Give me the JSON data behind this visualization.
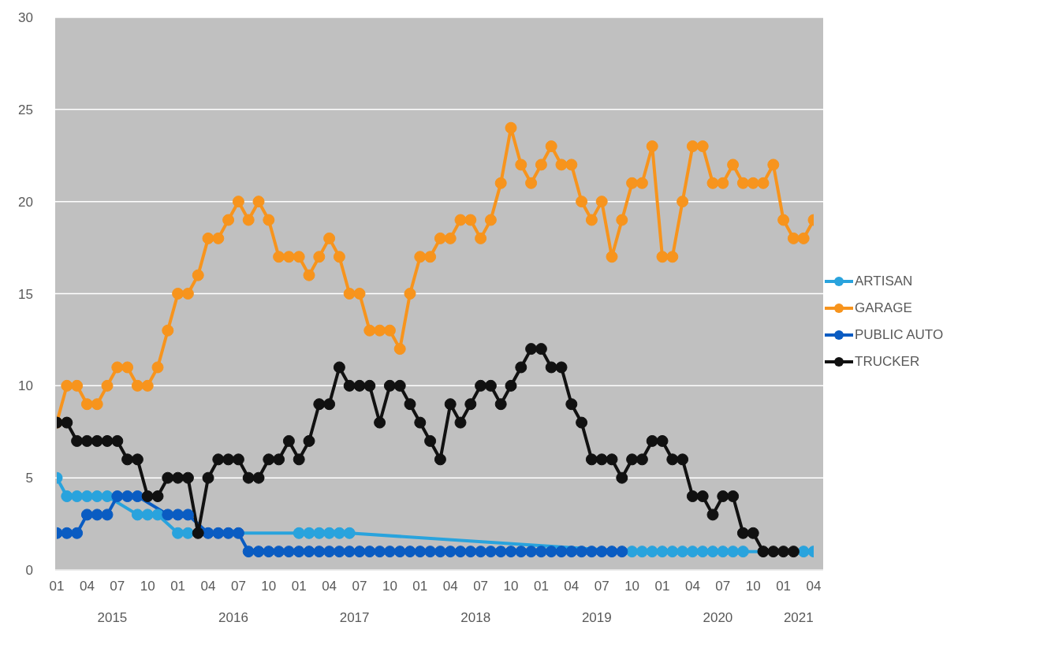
{
  "chart_data": {
    "type": "line",
    "categories": [
      "01",
      null,
      null,
      "04",
      null,
      null,
      "07",
      null,
      null,
      "10",
      null,
      null,
      "01",
      null,
      null,
      "04",
      null,
      null,
      "07",
      null,
      null,
      "10",
      null,
      null,
      "01",
      null,
      null,
      "04",
      null,
      null,
      "07",
      null,
      null,
      "10",
      null,
      null,
      "01",
      null,
      null,
      "04",
      null,
      null,
      "07",
      null,
      null,
      "10",
      null,
      null,
      "01",
      null,
      null,
      "04",
      null,
      null,
      "07",
      null,
      null,
      "10",
      null,
      null,
      "01",
      null,
      null,
      "04",
      null,
      null,
      "07",
      null,
      null,
      "10",
      null,
      null,
      "01",
      null,
      null,
      "04"
    ],
    "annotations": [
      "2015",
      "2016",
      "2017",
      "2018",
      "2019",
      "2020",
      "2021"
    ],
    "series": [
      {
        "name": "ARTISAN",
        "color": "#29a3dd",
        "values": [
          5,
          4,
          4,
          4,
          4,
          4,
          null,
          null,
          3,
          3,
          3,
          null,
          2,
          2,
          null,
          null,
          null,
          null,
          null,
          null,
          null,
          null,
          null,
          null,
          2,
          2,
          2,
          2,
          2,
          2,
          null,
          null,
          null,
          null,
          null,
          null,
          null,
          null,
          null,
          null,
          null,
          null,
          null,
          null,
          null,
          null,
          null,
          null,
          null,
          null,
          null,
          null,
          null,
          null,
          null,
          null,
          null,
          1,
          1,
          1,
          1,
          1,
          1,
          1,
          1,
          1,
          1,
          1,
          1,
          null,
          null,
          null,
          null,
          null,
          1,
          1
        ]
      },
      {
        "name": "GARAGE",
        "color": "#f7941d",
        "values": [
          8,
          10,
          10,
          9,
          9,
          10,
          11,
          11,
          10,
          10,
          11,
          13,
          15,
          15,
          16,
          18,
          18,
          19,
          20,
          19,
          20,
          19,
          17,
          17,
          17,
          16,
          17,
          18,
          17,
          15,
          15,
          13,
          13,
          13,
          12,
          15,
          17,
          17,
          18,
          18,
          19,
          19,
          18,
          19,
          21,
          24,
          22,
          21,
          22,
          23,
          22,
          22,
          20,
          19,
          20,
          17,
          19,
          21,
          21,
          23,
          17,
          17,
          20,
          23,
          23,
          21,
          21,
          22,
          21,
          21,
          21,
          22,
          19,
          18,
          18,
          19
        ]
      },
      {
        "name": "PUBLIC AUTO",
        "color": "#0a5cc2",
        "values": [
          2,
          2,
          2,
          3,
          3,
          3,
          4,
          4,
          4,
          null,
          null,
          3,
          3,
          3,
          null,
          2,
          2,
          2,
          2,
          1,
          1,
          1,
          1,
          1,
          1,
          1,
          1,
          1,
          1,
          1,
          1,
          1,
          1,
          1,
          1,
          1,
          1,
          1,
          1,
          1,
          1,
          1,
          1,
          1,
          1,
          1,
          1,
          1,
          1,
          1,
          1,
          1,
          1,
          1,
          1,
          1,
          1,
          null,
          null,
          null,
          null,
          null,
          null,
          null,
          null,
          null,
          null,
          null,
          null,
          null,
          null,
          null,
          null,
          null,
          null,
          null
        ]
      },
      {
        "name": "TRUCKER",
        "color": "#111111",
        "values": [
          8,
          8,
          7,
          7,
          7,
          7,
          7,
          6,
          6,
          4,
          4,
          5,
          5,
          5,
          2,
          5,
          6,
          6,
          6,
          5,
          5,
          6,
          6,
          7,
          6,
          7,
          9,
          9,
          11,
          10,
          10,
          10,
          8,
          10,
          10,
          9,
          8,
          7,
          6,
          9,
          8,
          9,
          10,
          10,
          9,
          10,
          11,
          12,
          12,
          11,
          11,
          9,
          8,
          6,
          6,
          6,
          5,
          6,
          6,
          7,
          7,
          6,
          6,
          4,
          4,
          3,
          4,
          4,
          2,
          2,
          1,
          1,
          1,
          1,
          null,
          null
        ]
      }
    ],
    "ylim": [
      0,
      30
    ],
    "yticks": [
      0,
      5,
      10,
      15,
      20,
      25,
      30
    ],
    "grid": "y",
    "legend": "right",
    "marker": "circle"
  }
}
